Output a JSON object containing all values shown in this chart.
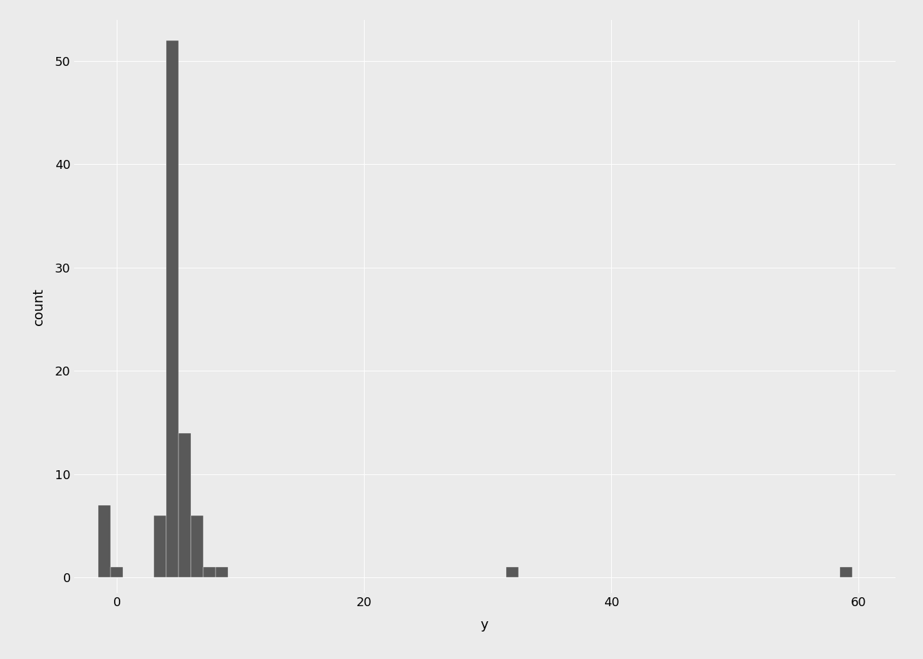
{
  "title": "",
  "xlabel": "y",
  "ylabel": "count",
  "xlim": [
    -3.5,
    63
  ],
  "ylim": [
    -1.5,
    54
  ],
  "yticks": [
    0,
    10,
    20,
    30,
    40,
    50
  ],
  "xticks": [
    0,
    20,
    40,
    60
  ],
  "background_color": "#EBEBEB",
  "bar_color": "#595959",
  "bar_edge_color": "#EBEBEB",
  "bar_edge_width": 0.3,
  "bins_left": [
    -1.5,
    -0.5,
    3.0,
    4.0,
    5.0,
    6.0,
    7.0,
    8.0,
    31.5,
    58.5
  ],
  "bins_right": [
    -0.5,
    0.5,
    4.0,
    5.0,
    6.0,
    7.0,
    8.0,
    9.0,
    32.5,
    59.5
  ],
  "heights": [
    7,
    1,
    6,
    52,
    14,
    6,
    1,
    1,
    1,
    1
  ],
  "grid_color": "#FFFFFF",
  "grid_linewidth": 0.7,
  "figsize": [
    13.44,
    9.6
  ],
  "dpi": 100,
  "tick_labelsize": 13,
  "label_fontsize": 14
}
